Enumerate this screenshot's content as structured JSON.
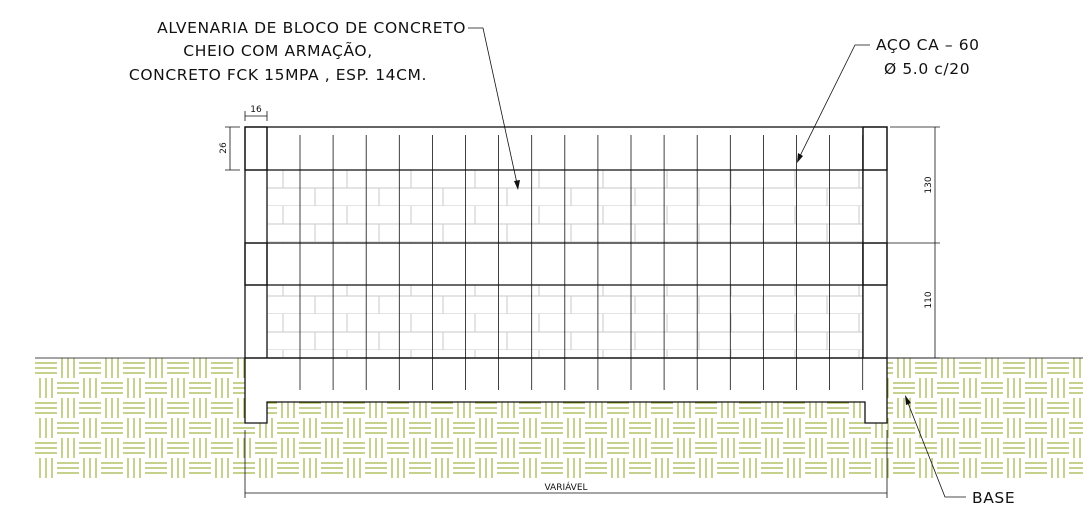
{
  "labels": {
    "wall": [
      "ALVENARIA DE BLOCO DE CONCRETO",
      "CHEIO COM ARMAÇÃO,",
      "CONCRETO FCK 15MPA , ESP. 14CM."
    ],
    "steel": [
      "AÇO CA – 60",
      "Ø 5.0 c/20"
    ],
    "base": "BASE"
  },
  "dimensions": {
    "pillar_width": "16",
    "beam_height": "26",
    "upper_height": "130",
    "lower_height": "110",
    "length": "VARIÁVEL"
  }
}
